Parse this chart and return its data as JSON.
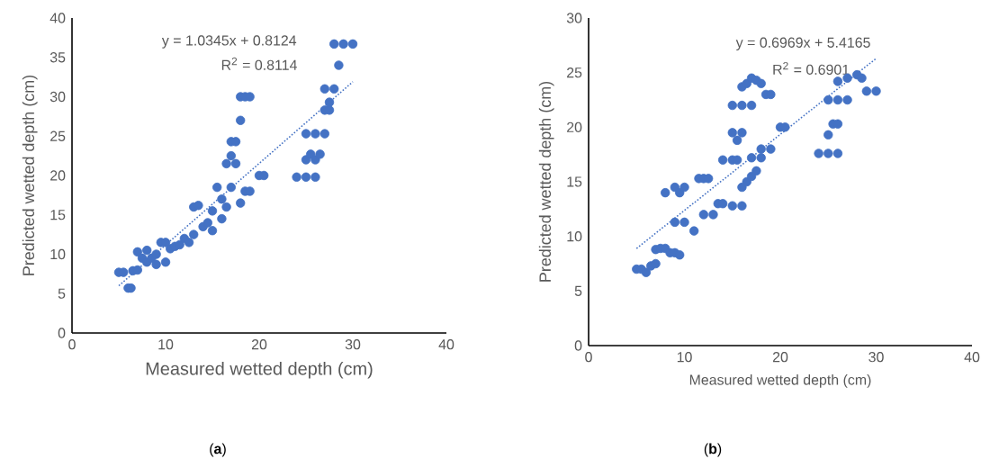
{
  "chart_data": [
    {
      "type": "scatter",
      "xlabel": "Measured wetted depth (cm)",
      "ylabel": "Predicted wetted depth (cm)",
      "xlim": [
        0,
        40
      ],
      "xticks": [
        0,
        10,
        20,
        30,
        40
      ],
      "ylim": [
        0,
        40
      ],
      "yticks": [
        0,
        5,
        10,
        15,
        20,
        25,
        30,
        35,
        40
      ],
      "annotations": [
        "y = 1.0345x + 0.8124",
        "R$^{2}$ = 0.8114",
        "(**a**)"
      ],
      "series": [
        {
          "color": "#4472c4",
          "marker": "circle",
          "x": [
            5,
            5.5,
            6,
            6.3,
            6.5,
            7,
            7,
            7.5,
            8,
            8,
            8.5,
            9,
            9,
            9.5,
            10,
            10,
            10.5,
            11,
            11.5,
            12,
            12.5,
            13,
            13.5,
            13,
            14,
            14.5,
            15,
            15,
            15.5,
            16,
            16,
            16.5,
            17,
            16.5,
            17,
            17,
            17.5,
            17.5,
            18,
            18,
            18.5,
            19,
            18,
            18.5,
            19,
            20,
            20.5,
            24,
            25,
            26,
            25,
            25.5,
            26,
            25,
            26,
            26.5,
            27,
            27,
            27.5,
            27,
            28,
            27.5,
            28.5,
            28,
            29,
            30
          ],
          "values": [
            7.7,
            7.7,
            5.7,
            5.7,
            7.9,
            8,
            10.3,
            9.5,
            10.5,
            9,
            9.5,
            8.7,
            10,
            11.5,
            11.5,
            9,
            10.7,
            11,
            11.2,
            12,
            11.5,
            16,
            16.2,
            12.5,
            13.5,
            14,
            13,
            15.5,
            18.5,
            17,
            14.5,
            16,
            18.5,
            21.5,
            22.5,
            24.3,
            24.3,
            21.5,
            27,
            30,
            30,
            30,
            16.5,
            18,
            18,
            20,
            20,
            19.8,
            19.8,
            19.8,
            22,
            22.7,
            22,
            25.3,
            25.3,
            22.7,
            25.3,
            28.3,
            28.3,
            31,
            31,
            29.3,
            34,
            36.7,
            36.7,
            36.7
          ]
        },
        {
          "type": "line",
          "color": "#4472c4",
          "line_style": "dotted",
          "marker": "none",
          "x": [
            5,
            30
          ],
          "values": [
            6.0,
            31.9
          ]
        }
      ]
    },
    {
      "type": "scatter",
      "xlabel": "Measured wetted depth (cm)",
      "ylabel": "Predicted wetted depth (cm)",
      "xlim": [
        0,
        40
      ],
      "xticks": [
        0,
        10,
        20,
        30,
        40
      ],
      "ylim": [
        0,
        30
      ],
      "yticks": [
        0,
        5,
        10,
        15,
        20,
        25,
        30
      ],
      "annotations": [
        "y = 0.6969x + 5.4165",
        "R$^{2}$ = 0.6901",
        "(**b**)"
      ],
      "series": [
        {
          "color": "#4472c4",
          "marker": "circle",
          "x": [
            5,
            5.5,
            6,
            6.5,
            7,
            7,
            7.5,
            8,
            8.5,
            9,
            9.5,
            8,
            9,
            9.5,
            10,
            9,
            10,
            11,
            11.5,
            12,
            12.5,
            12,
            13,
            13.5,
            14,
            15,
            16,
            14,
            15,
            15.5,
            15,
            15.5,
            16,
            15,
            16,
            17,
            16,
            16.5,
            17,
            17.5,
            18,
            18.5,
            19,
            20,
            20.5,
            16,
            16.5,
            17,
            17.5,
            17,
            18,
            18,
            19,
            24,
            25,
            26,
            25,
            25.5,
            26,
            25,
            26,
            27,
            26,
            27,
            28,
            28.5,
            29,
            30
          ],
          "values": [
            7,
            7,
            6.7,
            7.3,
            7.5,
            8.8,
            8.9,
            8.9,
            8.5,
            8.5,
            8.3,
            14,
            14.5,
            14,
            14.5,
            11.3,
            11.3,
            10.5,
            15.3,
            15.3,
            15.3,
            12,
            12,
            13,
            13,
            12.8,
            12.8,
            17,
            17,
            17,
            19.5,
            18.8,
            19.5,
            22,
            22,
            22,
            23.7,
            24,
            24.5,
            24.3,
            24,
            23,
            23,
            20,
            20,
            14.5,
            15,
            15.5,
            16,
            17.2,
            17.2,
            18,
            18,
            17.6,
            17.6,
            17.6,
            19.3,
            20.3,
            20.3,
            22.5,
            22.5,
            22.5,
            24.2,
            24.5,
            24.8,
            24.5,
            23.3,
            23.3
          ]
        },
        {
          "type": "line",
          "color": "#4472c4",
          "line_style": "dotted",
          "marker": "none",
          "x": [
            5,
            30
          ],
          "values": [
            8.9,
            26.3
          ]
        }
      ]
    }
  ]
}
